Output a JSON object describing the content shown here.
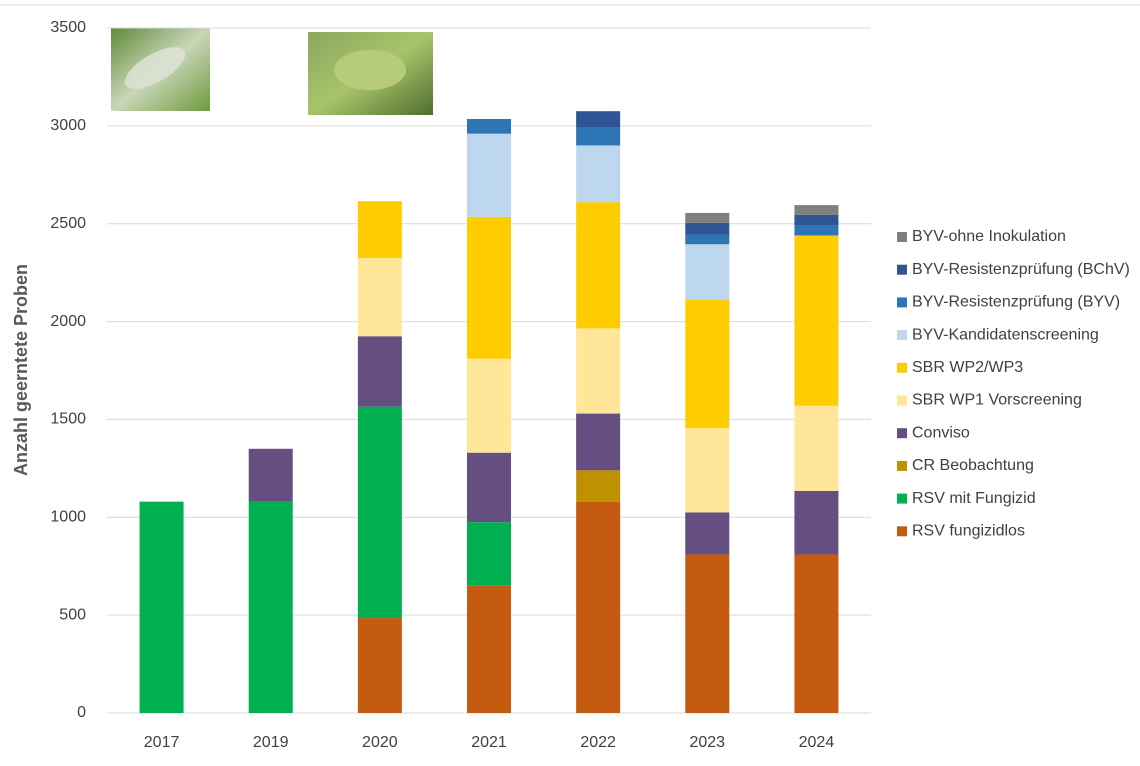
{
  "chart_data": {
    "type": "stacked_bar",
    "y_label": "Anzahl geerntete Proben",
    "categories": [
      "2017",
      "2019",
      "2020",
      "2021",
      "2022",
      "2023",
      "2024"
    ],
    "series": [
      {
        "name": "RSV fungizidlos",
        "color": "#c55a11",
        "values": [
          0,
          0,
          485,
          650,
          1080,
          810,
          810
        ]
      },
      {
        "name": "RSV mit Fungizid",
        "color": "#00b050",
        "values": [
          1080,
          1080,
          1080,
          325,
          0,
          0,
          0
        ]
      },
      {
        "name": "CR Beobachtung",
        "color": "#bf9000",
        "values": [
          0,
          0,
          0,
          0,
          160,
          0,
          0
        ]
      },
      {
        "name": "Conviso",
        "color": "#654f80",
        "values": [
          0,
          270,
          360,
          355,
          290,
          215,
          325
        ]
      },
      {
        "name": "SBR WP1 Vorscreening",
        "color": "#ffe699",
        "values": [
          0,
          0,
          400,
          480,
          435,
          430,
          435
        ]
      },
      {
        "name": "SBR WP2/WP3",
        "color": "#ffcc00",
        "values": [
          0,
          0,
          290,
          725,
          645,
          655,
          870
        ]
      },
      {
        "name": "BYV-Kandidatenscreening",
        "color": "#bdd7ee",
        "values": [
          0,
          0,
          0,
          425,
          290,
          285,
          0
        ]
      },
      {
        "name": "BYV-Resistenzprüfung (BYV)",
        "color": "#2e75b6",
        "values": [
          0,
          0,
          0,
          75,
          90,
          50,
          50
        ]
      },
      {
        "name": "BYV-Resistenzprüfung (BChV)",
        "color": "#2f5597",
        "values": [
          0,
          0,
          0,
          0,
          85,
          60,
          55
        ]
      },
      {
        "name": "BYV-ohne Inokulation",
        "color": "#7f7f7f",
        "values": [
          0,
          0,
          0,
          0,
          0,
          50,
          50
        ]
      }
    ],
    "ylim": [
      0,
      3500
    ],
    "yticks": [
      0,
      500,
      1000,
      1500,
      2000,
      2500,
      3000,
      3500
    ],
    "grid": true,
    "legend": "right"
  }
}
